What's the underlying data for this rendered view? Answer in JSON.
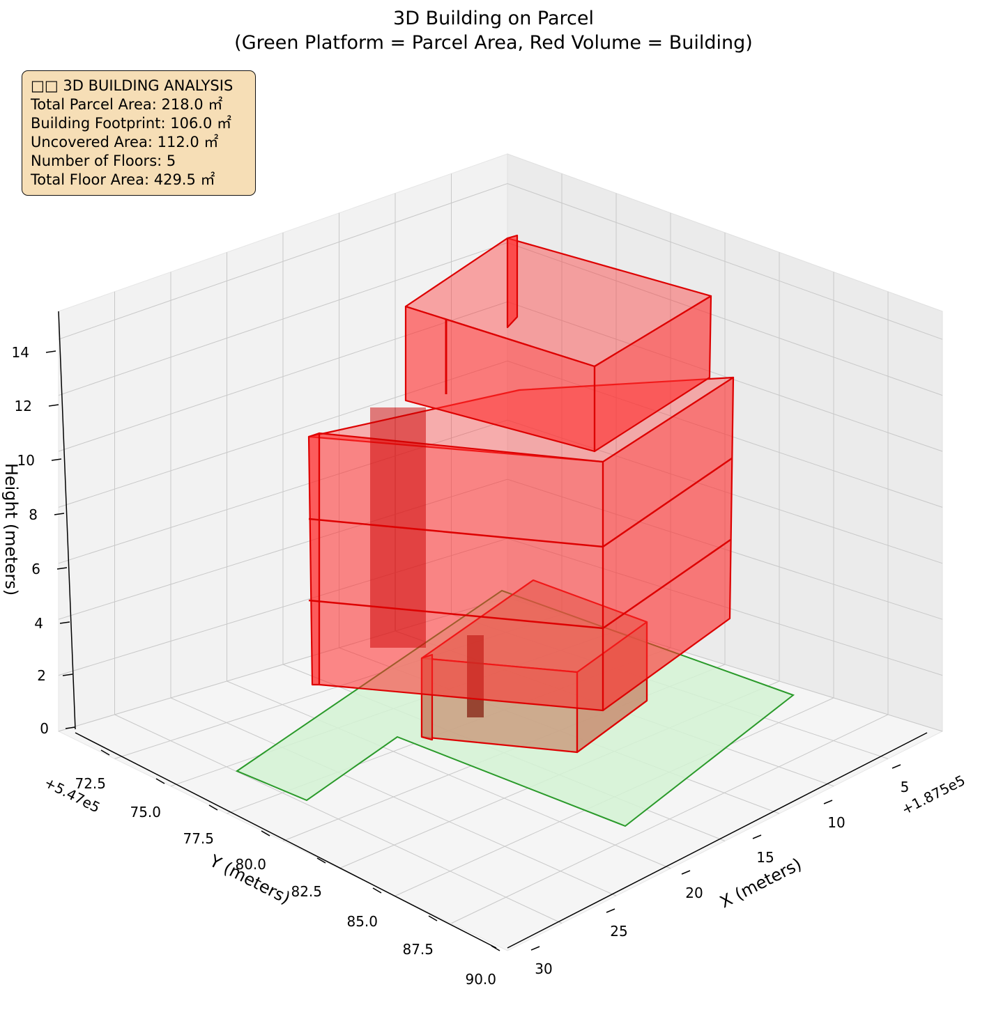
{
  "chart_data": {
    "type": "3d-polygon",
    "title": "3D Building on Parcel",
    "subtitle": "(Green Platform = Parcel Area, Red Volume = Building)",
    "xlabel": "X (meters)",
    "ylabel": "Y (meters)",
    "zlabel": "Height (meters)",
    "x_offset_label": "+1.875e5",
    "y_offset_label": "+5.47e5",
    "x_ticks": [
      "5",
      "10",
      "15",
      "20",
      "25",
      "30"
    ],
    "y_ticks": [
      "72.5",
      "75.0",
      "77.5",
      "80.0",
      "82.5",
      "85.0",
      "87.5",
      "90.0"
    ],
    "z_ticks": [
      "0",
      "2",
      "4",
      "6",
      "8",
      "10",
      "12",
      "14"
    ],
    "xlim": [
      3,
      31
    ],
    "ylim": [
      71.5,
      90.5
    ],
    "zlim": [
      0,
      15
    ],
    "grid": true,
    "colors": {
      "parcel": "#d4f2d4",
      "parcel_edge": "#2a9a2a",
      "building": "#ff2a2a",
      "building_edge": "#dd0000",
      "lower_block": "#c88b6e"
    },
    "parcel": {
      "name": "Parcel Area",
      "area_m2": 218.0
    },
    "building": {
      "name": "Building",
      "footprint_m2": 106.0,
      "floors": 5,
      "total_floor_area_m2": 429.5
    }
  },
  "info": {
    "line1": "□□ 3D BUILDING ANALYSIS",
    "line2": "Total Parcel Area: 218.0 ㎡",
    "line3": "Building Footprint: 106.0 ㎡",
    "line4": "Uncovered Area: 112.0 ㎡",
    "line5": "Number of Floors: 5",
    "line6": "Total Floor Area: 429.5 ㎡"
  }
}
